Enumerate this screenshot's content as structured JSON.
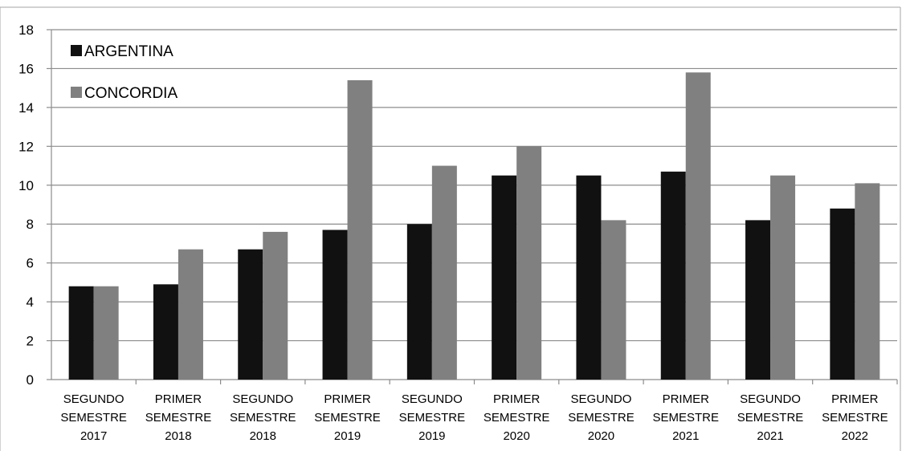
{
  "chart_data": {
    "type": "bar",
    "categories": [
      [
        "SEGUNDO",
        "SEMESTRE",
        "2017"
      ],
      [
        "PRIMER",
        "SEMESTRE",
        "2018"
      ],
      [
        "SEGUNDO",
        "SEMESTRE",
        "2018"
      ],
      [
        "PRIMER",
        "SEMESTRE",
        "2019"
      ],
      [
        "SEGUNDO",
        "SEMESTRE",
        "2019"
      ],
      [
        "PRIMER",
        "SEMESTRE",
        "2020"
      ],
      [
        "SEGUNDO",
        "SEMESTRE",
        "2020"
      ],
      [
        "PRIMER",
        "SEMESTRE",
        "2021"
      ],
      [
        "SEGUNDO",
        "SEMESTRE",
        "2021"
      ],
      [
        "PRIMER",
        "SEMESTRE",
        "2022"
      ]
    ],
    "series": [
      {
        "name": "ARGENTINA",
        "color": "#111111",
        "values": [
          4.8,
          4.9,
          6.7,
          7.7,
          8.0,
          10.5,
          10.5,
          10.7,
          8.2,
          8.8
        ]
      },
      {
        "name": "CONCORDIA",
        "color": "#808080",
        "values": [
          4.8,
          6.7,
          7.6,
          15.4,
          11.0,
          12.0,
          8.2,
          15.8,
          10.5,
          10.1
        ]
      }
    ],
    "ylim": [
      0,
      18
    ],
    "yticks": [
      "0",
      "2",
      "4",
      "6",
      "8",
      "10",
      "12",
      "14",
      "16",
      "18"
    ],
    "grid": true,
    "legend": "top-left",
    "title": "",
    "xlabel": "",
    "ylabel": ""
  }
}
